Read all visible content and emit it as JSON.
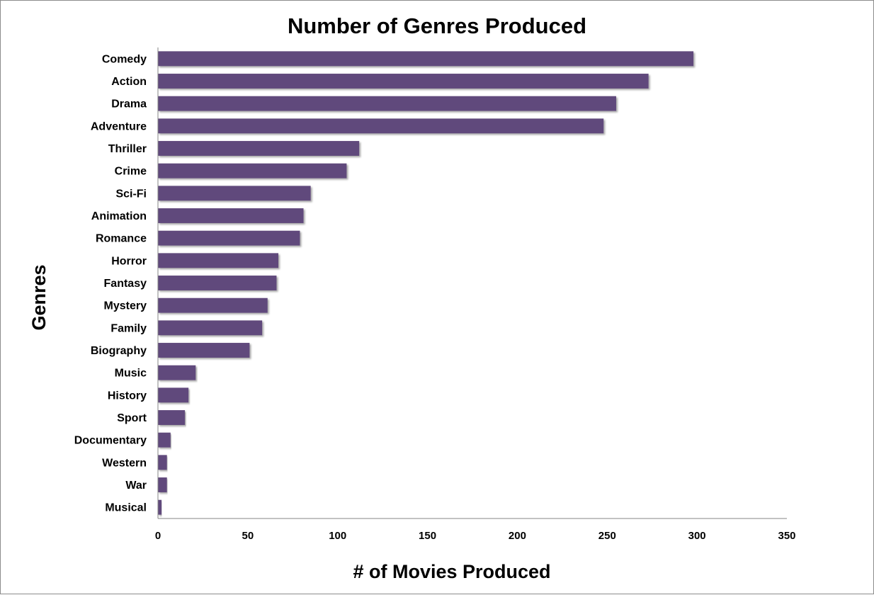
{
  "chart_data": {
    "type": "bar",
    "orientation": "horizontal",
    "title": "Number of Genres Produced",
    "xlabel": "# of Movies Produced",
    "ylabel": "Genres",
    "xlim": [
      0,
      350
    ],
    "xticks": [
      0,
      50,
      100,
      150,
      200,
      250,
      300,
      350
    ],
    "grid": false,
    "legend": "none",
    "categories": [
      "Comedy",
      "Action",
      "Drama",
      "Adventure",
      "Thriller",
      "Crime",
      "Sci-Fi",
      "Animation",
      "Romance",
      "Horror",
      "Fantasy",
      "Mystery",
      "Family",
      "Biography",
      "Music",
      "History",
      "Sport",
      "Documentary",
      "Western",
      "War",
      "Musical"
    ],
    "values": [
      298,
      273,
      255,
      248,
      112,
      105,
      85,
      81,
      79,
      67,
      66,
      61,
      58,
      51,
      21,
      17,
      15,
      7,
      5,
      5,
      2
    ],
    "bar_color": "#604a7b"
  }
}
